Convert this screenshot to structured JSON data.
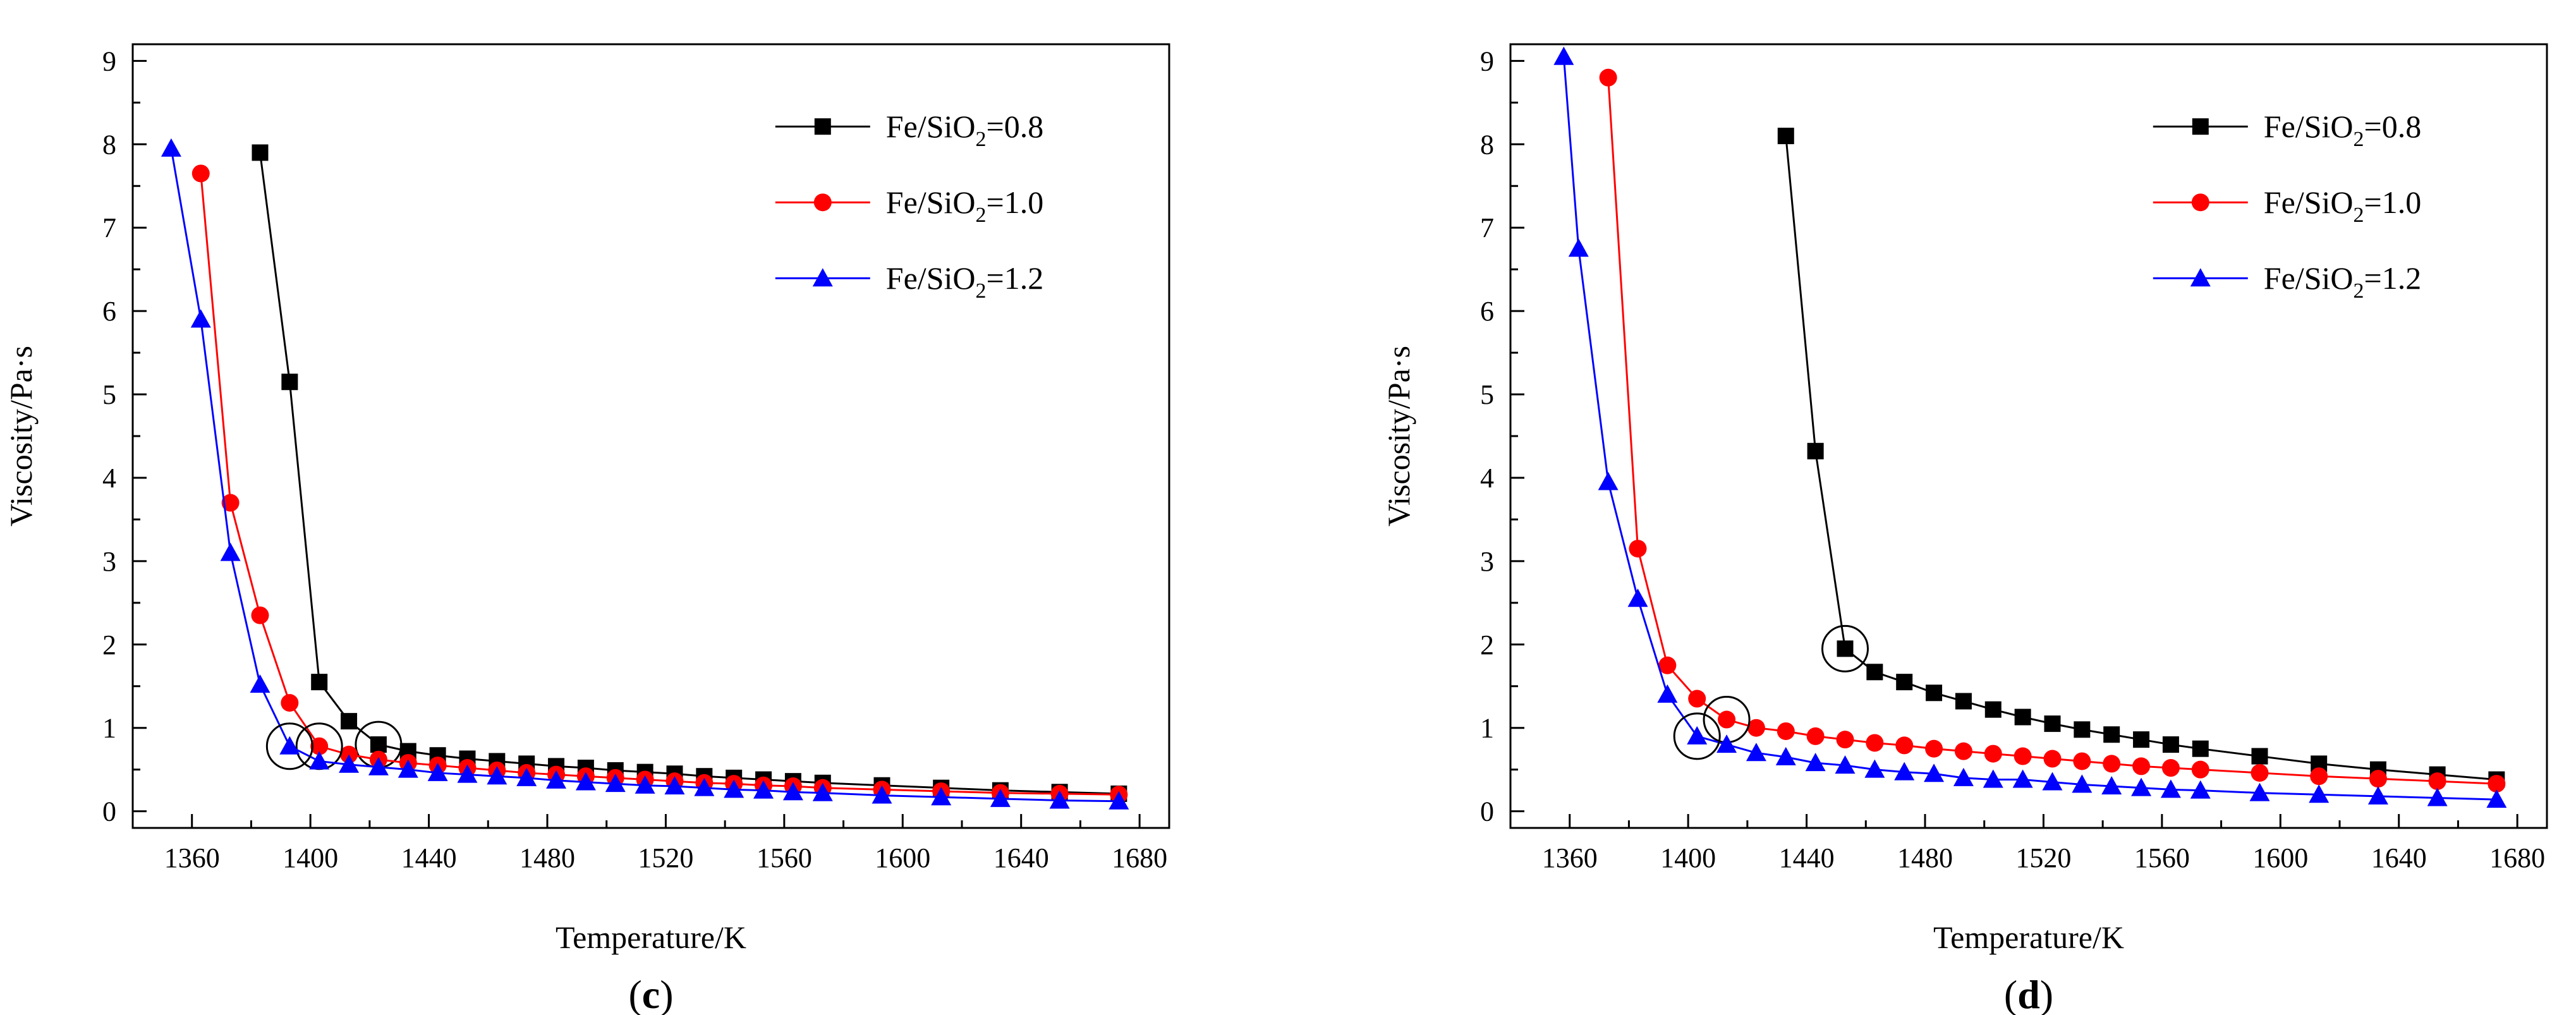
{
  "chart_data": [
    {
      "panel": "c",
      "type": "line",
      "xlabel": "Temperature/K",
      "ylabel": "Viscosity/Pa·s",
      "xlim": [
        1340,
        1690
      ],
      "ylim": [
        -0.2,
        9.2
      ],
      "xticks": [
        1360,
        1400,
        1440,
        1480,
        1520,
        1560,
        1600,
        1640,
        1680
      ],
      "yticks": [
        0,
        1,
        2,
        3,
        4,
        5,
        6,
        7,
        8,
        9
      ],
      "legend_position": "top-right",
      "series": [
        {
          "name": "Fe/SiO2=0.8",
          "label_main": "Fe/SiO",
          "label_sub": "2",
          "label_tail": "=0.8",
          "color": "#000000",
          "marker": "square",
          "x": [
            1383,
            1393,
            1403,
            1413,
            1423,
            1433,
            1443,
            1453,
            1463,
            1473,
            1483,
            1493,
            1503,
            1513,
            1523,
            1533,
            1543,
            1553,
            1563,
            1573,
            1593,
            1613,
            1633,
            1653,
            1673
          ],
          "y": [
            7.9,
            5.15,
            1.55,
            1.08,
            0.8,
            0.72,
            0.67,
            0.63,
            0.6,
            0.57,
            0.54,
            0.52,
            0.49,
            0.47,
            0.45,
            0.42,
            0.4,
            0.38,
            0.36,
            0.34,
            0.31,
            0.28,
            0.25,
            0.23,
            0.21
          ],
          "circled_x": [
            1423
          ]
        },
        {
          "name": "Fe/SiO2=1.0",
          "label_main": "Fe/SiO",
          "label_sub": "2",
          "label_tail": "=1.0",
          "color": "#ff0000",
          "marker": "circle",
          "x": [
            1363,
            1373,
            1383,
            1393,
            1403,
            1413,
            1423,
            1433,
            1443,
            1453,
            1463,
            1473,
            1483,
            1493,
            1503,
            1513,
            1523,
            1533,
            1543,
            1553,
            1563,
            1573,
            1593,
            1613,
            1633,
            1653,
            1673
          ],
          "y": [
            7.65,
            3.7,
            2.35,
            1.3,
            0.78,
            0.68,
            0.62,
            0.58,
            0.55,
            0.52,
            0.49,
            0.46,
            0.44,
            0.42,
            0.4,
            0.38,
            0.36,
            0.34,
            0.33,
            0.31,
            0.3,
            0.28,
            0.26,
            0.24,
            0.22,
            0.21,
            0.2
          ],
          "circled_x": [
            1403
          ]
        },
        {
          "name": "Fe/SiO2=1.2",
          "label_main": "Fe/SiO",
          "label_sub": "2",
          "label_tail": "=1.2",
          "color": "#0000ff",
          "marker": "triangle",
          "x": [
            1353,
            1363,
            1373,
            1383,
            1393,
            1403,
            1413,
            1423,
            1433,
            1443,
            1453,
            1463,
            1473,
            1483,
            1493,
            1503,
            1513,
            1523,
            1533,
            1543,
            1553,
            1563,
            1573,
            1593,
            1613,
            1633,
            1653,
            1673
          ],
          "y": [
            7.95,
            5.9,
            3.1,
            1.52,
            0.78,
            0.6,
            0.56,
            0.53,
            0.5,
            0.46,
            0.44,
            0.42,
            0.4,
            0.37,
            0.35,
            0.33,
            0.31,
            0.3,
            0.28,
            0.26,
            0.25,
            0.23,
            0.22,
            0.19,
            0.17,
            0.15,
            0.13,
            0.12
          ],
          "circled_x": [
            1393
          ]
        }
      ]
    },
    {
      "panel": "d",
      "type": "line",
      "xlabel": "Temperature/K",
      "ylabel": "Viscosity/Pa·s",
      "xlim": [
        1340,
        1690
      ],
      "ylim": [
        -0.2,
        9.2
      ],
      "xticks": [
        1360,
        1400,
        1440,
        1480,
        1520,
        1560,
        1600,
        1640,
        1680
      ],
      "yticks": [
        0,
        1,
        2,
        3,
        4,
        5,
        6,
        7,
        8,
        9
      ],
      "legend_position": "top-right",
      "series": [
        {
          "name": "Fe/SiO2=0.8",
          "label_main": "Fe/SiO",
          "label_sub": "2",
          "label_tail": "=0.8",
          "color": "#000000",
          "marker": "square",
          "x": [
            1433,
            1443,
            1453,
            1463,
            1473,
            1483,
            1493,
            1503,
            1513,
            1523,
            1533,
            1543,
            1553,
            1563,
            1573,
            1593,
            1613,
            1633,
            1653,
            1673
          ],
          "y": [
            8.1,
            4.32,
            1.95,
            1.67,
            1.55,
            1.42,
            1.32,
            1.22,
            1.13,
            1.05,
            0.98,
            0.92,
            0.86,
            0.8,
            0.75,
            0.66,
            0.57,
            0.5,
            0.44,
            0.38
          ],
          "circled_x": [
            1453
          ]
        },
        {
          "name": "Fe/SiO2=1.0",
          "label_main": "Fe/SiO",
          "label_sub": "2",
          "label_tail": "=1.0",
          "color": "#ff0000",
          "marker": "circle",
          "x": [
            1373,
            1383,
            1393,
            1403,
            1413,
            1423,
            1433,
            1443,
            1453,
            1463,
            1473,
            1483,
            1493,
            1503,
            1513,
            1523,
            1533,
            1543,
            1553,
            1563,
            1573,
            1593,
            1613,
            1633,
            1653,
            1673
          ],
          "y": [
            8.8,
            3.15,
            1.75,
            1.35,
            1.1,
            1.0,
            0.96,
            0.9,
            0.86,
            0.82,
            0.79,
            0.75,
            0.72,
            0.69,
            0.66,
            0.63,
            0.6,
            0.57,
            0.54,
            0.52,
            0.5,
            0.46,
            0.42,
            0.39,
            0.36,
            0.33
          ],
          "circled_x": [
            1413
          ]
        },
        {
          "name": "Fe/SiO2=1.2",
          "label_main": "Fe/SiO",
          "label_sub": "2",
          "label_tail": "=1.2",
          "color": "#0000ff",
          "marker": "triangle",
          "x": [
            1358,
            1363,
            1373,
            1383,
            1393,
            1403,
            1413,
            1423,
            1433,
            1443,
            1453,
            1463,
            1473,
            1483,
            1493,
            1503,
            1513,
            1523,
            1533,
            1543,
            1553,
            1563,
            1573,
            1593,
            1613,
            1633,
            1653,
            1673
          ],
          "y": [
            9.05,
            6.75,
            3.95,
            2.55,
            1.4,
            0.9,
            0.8,
            0.7,
            0.65,
            0.58,
            0.55,
            0.5,
            0.47,
            0.45,
            0.4,
            0.38,
            0.38,
            0.35,
            0.32,
            0.3,
            0.28,
            0.26,
            0.25,
            0.22,
            0.2,
            0.18,
            0.16,
            0.14
          ],
          "circled_x": [
            1403
          ]
        }
      ]
    }
  ],
  "colors": {
    "axis": "#000000",
    "background": "#ffffff"
  }
}
